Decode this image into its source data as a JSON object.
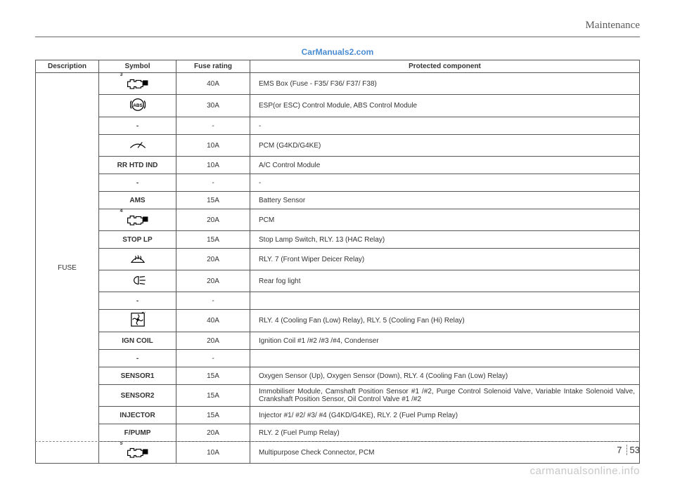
{
  "header": {
    "title": "Maintenance"
  },
  "watermark": {
    "top": "CarManuals2.com",
    "bottom": "carmanualsonline.info"
  },
  "page": {
    "section": "7",
    "number": "53"
  },
  "table": {
    "columns": {
      "description": "Description",
      "symbol": "Symbol",
      "rating": "Fuse rating",
      "component": "Protected component"
    },
    "group_label": "FUSE",
    "rows": [
      {
        "symbol_type": "icon",
        "symbol": "engine-3",
        "rating": "40A",
        "component": "EMS Box (Fuse - F35/ F36/ F37/ F38)",
        "tall": true
      },
      {
        "symbol_type": "icon",
        "symbol": "abs",
        "rating": "30A",
        "component": "ESP(or ESC) Control Module, ABS Control Module",
        "tall": true
      },
      {
        "symbol_type": "text",
        "symbol": "-",
        "rating": "-",
        "component": "-"
      },
      {
        "symbol_type": "icon",
        "symbol": "wiper",
        "rating": "10A",
        "component": "PCM (G4KD/G4KE)",
        "tall": true
      },
      {
        "symbol_type": "text",
        "symbol": "RR HTD IND",
        "rating": "10A",
        "component": "A/C Control Module"
      },
      {
        "symbol_type": "text",
        "symbol": "-",
        "rating": "-",
        "component": "-"
      },
      {
        "symbol_type": "text",
        "symbol": "AMS",
        "rating": "15A",
        "component": "Battery Sensor"
      },
      {
        "symbol_type": "icon",
        "symbol": "engine-4",
        "rating": "20A",
        "component": "PCM",
        "tall": true
      },
      {
        "symbol_type": "text",
        "symbol": "STOP LP",
        "rating": "15A",
        "component": "Stop Lamp Switch, RLY. 13 (HAC Relay)"
      },
      {
        "symbol_type": "icon",
        "symbol": "defrost",
        "rating": "20A",
        "component": "RLY. 7 (Front Wiper Deicer Relay)",
        "tall": true
      },
      {
        "symbol_type": "icon",
        "symbol": "foglight",
        "rating": "20A",
        "component": "Rear fog light",
        "tall": true
      },
      {
        "symbol_type": "text",
        "symbol": "-",
        "rating": "-",
        "component": ""
      },
      {
        "symbol_type": "icon",
        "symbol": "fan",
        "rating": "40A",
        "component": "RLY. 4 (Cooling Fan (Low) Relay), RLY. 5 (Cooling Fan (Hi) Relay)",
        "tall": true
      },
      {
        "symbol_type": "text",
        "symbol": "IGN COIL",
        "rating": "20A",
        "component": "Ignition Coil #1 /#2 /#3 /#4, Condenser"
      },
      {
        "symbol_type": "text",
        "symbol": "-",
        "rating": "-",
        "component": ""
      },
      {
        "symbol_type": "text",
        "symbol": "SENSOR1",
        "rating": "15A",
        "component": "Oxygen Sensor (Up), Oxygen Sensor (Down), RLY. 4 (Cooling Fan (Low) Relay)"
      },
      {
        "symbol_type": "text",
        "symbol": "SENSOR2",
        "rating": "15A",
        "component": "Immobiliser Module, Camshaft Position Sensor #1 /#2, Purge Control Solenoid Valve, Variable Intake Solenoid Valve, Crankshaft Position Sensor, Oil Control Valve #1 /#2",
        "tall": true
      },
      {
        "symbol_type": "text",
        "symbol": "INJECTOR",
        "rating": "15A",
        "component": "Injector #1/ #2/ #3/ #4 (G4KD/G4KE), RLY. 2 (Fuel Pump Relay)"
      },
      {
        "symbol_type": "text",
        "symbol": "F/PUMP",
        "rating": "20A",
        "component": "RLY. 2 (Fuel Pump Relay)"
      },
      {
        "symbol_type": "icon",
        "symbol": "engine-5",
        "rating": "10A",
        "component": "Multipurpose Check Connector, PCM",
        "tall": true
      }
    ]
  },
  "icons": {
    "engine-3": "3",
    "engine-4": "4",
    "engine-5": "5"
  }
}
